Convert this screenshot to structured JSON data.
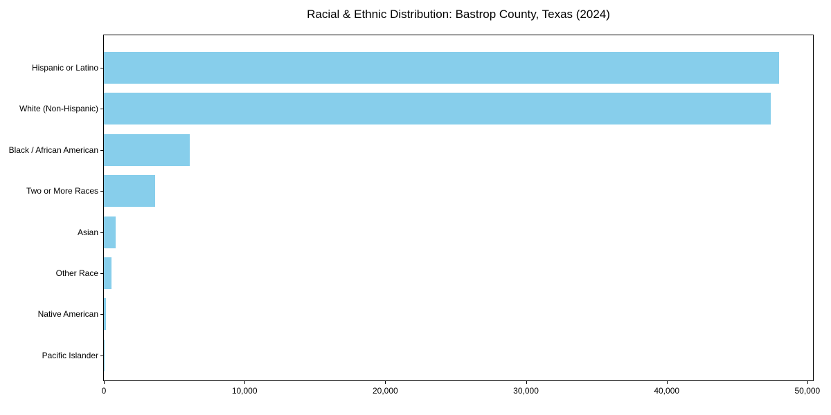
{
  "chart_data": {
    "type": "bar",
    "orientation": "horizontal",
    "title": "Racial & Ethnic Distribution: Bastrop County, Texas (2024)",
    "categories": [
      "Hispanic or Latino",
      "White (Non-Hispanic)",
      "Black / African American",
      "Two or More Races",
      "Asian",
      "Other Race",
      "Native American",
      "Pacific Islander"
    ],
    "values": [
      48000,
      47400,
      6100,
      3650,
      860,
      540,
      170,
      40
    ],
    "xlim": [
      0,
      50400
    ],
    "x_ticks": [
      0,
      10000,
      20000,
      30000,
      40000,
      50000
    ],
    "x_tick_labels": [
      "0",
      "10,000",
      "20,000",
      "30,000",
      "40,000",
      "50,000"
    ],
    "bar_color": "#87CEEB",
    "axis_color": "#000000",
    "text_color": "#000000",
    "background_color": "#ffffff",
    "grid": false,
    "legend": "none",
    "sort_order": "descending-top-to-bottom"
  }
}
